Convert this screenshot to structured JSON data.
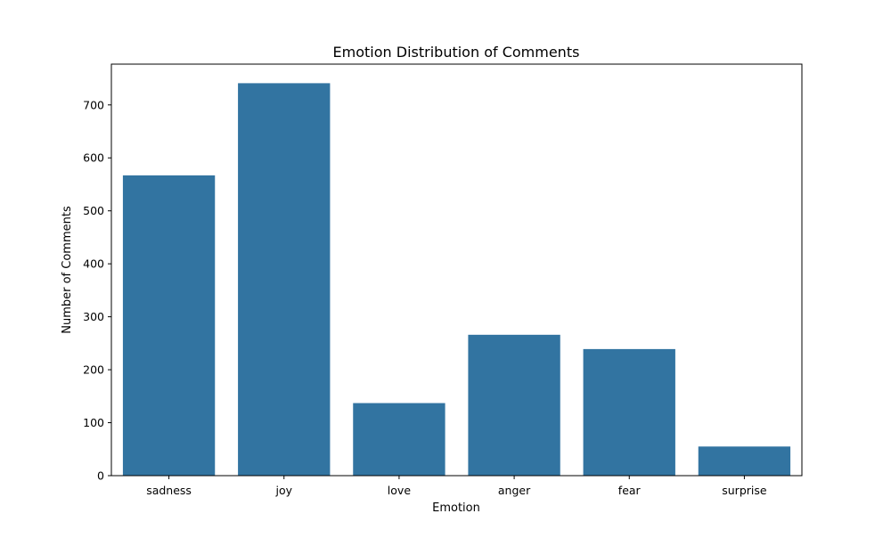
{
  "chart_data": {
    "type": "bar",
    "title": "Emotion Distribution of Comments",
    "xlabel": "Emotion",
    "ylabel": "Number of Comments",
    "categories": [
      "sadness",
      "joy",
      "love",
      "anger",
      "fear",
      "surprise"
    ],
    "values": [
      567,
      741,
      137,
      266,
      239,
      55
    ],
    "ylim": [
      0,
      777
    ],
    "yticks": [
      0,
      100,
      200,
      300,
      400,
      500,
      600,
      700
    ],
    "grid": false,
    "bar_color": "#3274a1"
  }
}
